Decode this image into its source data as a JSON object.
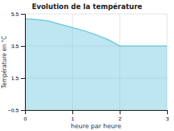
{
  "chart_data": {
    "type": "area",
    "title": "Evolution de la température",
    "xlabel": "heure par heure",
    "ylabel": "Température en °C",
    "x": [
      0,
      0.25,
      0.5,
      0.75,
      1.0,
      1.25,
      1.5,
      1.75,
      2.0,
      2.5,
      3.0
    ],
    "values": [
      5.2,
      5.15,
      5.05,
      4.85,
      4.65,
      4.45,
      4.2,
      3.9,
      3.5,
      3.5,
      3.5
    ],
    "color": "#6cc8de",
    "xlim": [
      0,
      3
    ],
    "ylim": [
      -0.5,
      5.5
    ],
    "xticks": [
      0,
      1,
      2,
      3
    ],
    "yticks": [
      {
        "value": -0.5,
        "label": "−0.5"
      },
      1.5,
      3.5,
      5.5
    ],
    "grid": true
  }
}
